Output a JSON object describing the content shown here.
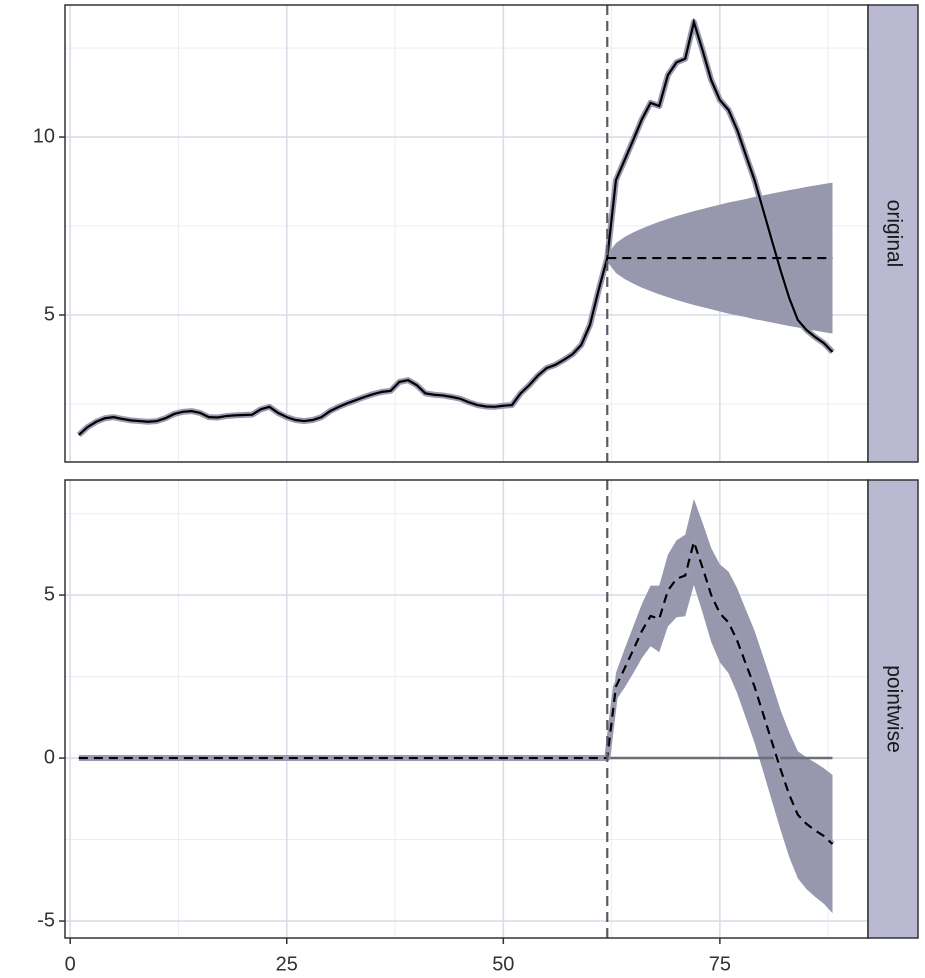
{
  "chart_data": [
    {
      "type": "line",
      "strip": "original",
      "xlim": [
        -0.6,
        92.1
      ],
      "xticks": [
        0,
        25,
        50,
        75
      ],
      "minor_xticks": [
        12.5,
        37.5,
        62.5,
        87.5
      ],
      "x_tick_labels": false,
      "ylim": [
        0.87,
        13.71
      ],
      "yticks": [
        5,
        10
      ],
      "minor_yticks": [
        2.5,
        7.5,
        12.5
      ],
      "vline": 62,
      "x": [
        1,
        2,
        3,
        4,
        5,
        6,
        7,
        8,
        9,
        10,
        11,
        12,
        13,
        14,
        15,
        16,
        17,
        18,
        19,
        20,
        21,
        22,
        23,
        24,
        25,
        26,
        27,
        28,
        29,
        30,
        31,
        32,
        33,
        34,
        35,
        36,
        37,
        38,
        39,
        40,
        41,
        42,
        43,
        44,
        45,
        46,
        47,
        48,
        49,
        50,
        51,
        52,
        53,
        54,
        55,
        56,
        57,
        58,
        59,
        60,
        61,
        62,
        63,
        64,
        65,
        66,
        67,
        68,
        69,
        70,
        71,
        72,
        73,
        74,
        75,
        76,
        77,
        78,
        79,
        80,
        81,
        82,
        83,
        84,
        85,
        86,
        87,
        88
      ],
      "series": [
        {
          "color": "#000000",
          "dash": false,
          "values": [
            1.63,
            1.85,
            2.0,
            2.1,
            2.13,
            2.08,
            2.04,
            2.02,
            2.0,
            2.02,
            2.1,
            2.22,
            2.28,
            2.3,
            2.25,
            2.13,
            2.12,
            2.16,
            2.18,
            2.19,
            2.2,
            2.35,
            2.42,
            2.25,
            2.13,
            2.05,
            2.02,
            2.05,
            2.13,
            2.3,
            2.42,
            2.52,
            2.61,
            2.7,
            2.78,
            2.84,
            2.87,
            3.12,
            3.17,
            3.03,
            2.8,
            2.76,
            2.74,
            2.7,
            2.65,
            2.55,
            2.47,
            2.43,
            2.42,
            2.45,
            2.47,
            2.8,
            3.03,
            3.3,
            3.51,
            3.6,
            3.74,
            3.9,
            4.16,
            4.72,
            5.7,
            6.6,
            8.79,
            9.35,
            9.92,
            10.5,
            10.96,
            10.87,
            11.74,
            12.1,
            12.2,
            13.23,
            12.44,
            11.6,
            11.04,
            10.76,
            10.2,
            9.49,
            8.79,
            7.95,
            7.1,
            6.26,
            5.48,
            4.86,
            4.58,
            4.38,
            4.21,
            3.96
          ]
        }
      ],
      "band": {
        "color": "#9797ae",
        "x": [
          62,
          63,
          64,
          65,
          66,
          67,
          68,
          69,
          70,
          71,
          72,
          73,
          74,
          75,
          76,
          77,
          78,
          79,
          80,
          81,
          82,
          83,
          84,
          85,
          86,
          87,
          88
        ],
        "lower": [
          6.5,
          6.18,
          6.01,
          5.88,
          5.77,
          5.67,
          5.58,
          5.5,
          5.42,
          5.35,
          5.28,
          5.22,
          5.16,
          5.1,
          5.04,
          4.99,
          4.94,
          4.88,
          4.84,
          4.79,
          4.74,
          4.69,
          4.65,
          4.6,
          4.56,
          4.52,
          4.48
        ],
        "mean": [
          6.6,
          6.6,
          6.6,
          6.6,
          6.6,
          6.6,
          6.6,
          6.6,
          6.6,
          6.6,
          6.6,
          6.6,
          6.6,
          6.6,
          6.6,
          6.6,
          6.6,
          6.6,
          6.6,
          6.6,
          6.6,
          6.6,
          6.6,
          6.6,
          6.6,
          6.6,
          6.6
        ],
        "upper": [
          6.7,
          7.02,
          7.19,
          7.32,
          7.43,
          7.53,
          7.62,
          7.7,
          7.78,
          7.85,
          7.92,
          7.98,
          8.04,
          8.1,
          8.16,
          8.21,
          8.26,
          8.32,
          8.36,
          8.41,
          8.46,
          8.51,
          8.55,
          8.6,
          8.64,
          8.68,
          8.72
        ]
      }
    },
    {
      "type": "line",
      "strip": "pointwise",
      "xlim": [
        -0.6,
        92.1
      ],
      "xticks": [
        0,
        25,
        50,
        75
      ],
      "minor_xticks": [
        12.5,
        37.5,
        62.5,
        87.5
      ],
      "x_tick_labels": true,
      "ylim": [
        -5.52,
        8.53
      ],
      "yticks": [
        -5,
        0,
        5
      ],
      "minor_yticks": [
        -2.5,
        2.5,
        7.5
      ],
      "vline": 62,
      "hline": 0,
      "x": [
        1,
        2,
        3,
        4,
        5,
        6,
        7,
        8,
        9,
        10,
        11,
        12,
        13,
        14,
        15,
        16,
        17,
        18,
        19,
        20,
        21,
        22,
        23,
        24,
        25,
        26,
        27,
        28,
        29,
        30,
        31,
        32,
        33,
        34,
        35,
        36,
        37,
        38,
        39,
        40,
        41,
        42,
        43,
        44,
        45,
        46,
        47,
        48,
        49,
        50,
        51,
        52,
        53,
        54,
        55,
        56,
        57,
        58,
        59,
        60,
        61,
        62,
        63,
        64,
        65,
        66,
        67,
        68,
        69,
        70,
        71,
        72,
        73,
        74,
        75,
        76,
        77,
        78,
        79,
        80,
        81,
        82,
        83,
        84,
        85,
        86,
        87,
        88
      ],
      "series": [
        {
          "color": "#000000",
          "dash": true,
          "values": [
            0,
            0,
            0,
            0,
            0,
            0,
            0,
            0,
            0,
            0,
            0,
            0,
            0,
            0,
            0,
            0,
            0,
            0,
            0,
            0,
            0,
            0,
            0,
            0,
            0,
            0,
            0,
            0,
            0,
            0,
            0,
            0,
            0,
            0,
            0,
            0,
            0,
            0,
            0,
            0,
            0,
            0,
            0,
            0,
            0,
            0,
            0,
            0,
            0,
            0,
            0,
            0,
            0,
            0,
            0,
            0,
            0,
            0,
            0,
            0,
            0,
            0,
            2.19,
            2.75,
            3.32,
            3.9,
            4.36,
            4.27,
            5.14,
            5.5,
            5.6,
            6.63,
            5.84,
            5.0,
            4.44,
            4.16,
            3.6,
            2.89,
            2.19,
            1.35,
            0.5,
            -0.34,
            -1.12,
            -1.74,
            -2.02,
            -2.22,
            -2.39,
            -2.64
          ]
        }
      ],
      "band": {
        "color": "#9797ae",
        "x": [
          62,
          63,
          64,
          65,
          66,
          67,
          68,
          69,
          70,
          71,
          72,
          73,
          74,
          75,
          76,
          77,
          78,
          79,
          80,
          81,
          82,
          83,
          84,
          85,
          86,
          87,
          88
        ],
        "lower": [
          -0.1,
          1.77,
          2.16,
          2.6,
          3.07,
          3.43,
          3.25,
          4.04,
          4.32,
          4.35,
          5.31,
          4.46,
          3.56,
          2.94,
          2.6,
          1.99,
          1.23,
          0.47,
          -0.41,
          -1.31,
          -2.2,
          -3.03,
          -3.69,
          -4.02,
          -4.26,
          -4.47,
          -4.76
        ],
        "upper": [
          0.1,
          2.61,
          3.34,
          4.04,
          4.73,
          5.29,
          5.29,
          6.24,
          6.68,
          6.85,
          7.95,
          7.22,
          6.44,
          5.94,
          5.72,
          5.21,
          4.55,
          3.91,
          3.11,
          2.31,
          1.48,
          0.79,
          0.21,
          0.02,
          -0.14,
          -0.31,
          -0.52
        ]
      }
    }
  ]
}
